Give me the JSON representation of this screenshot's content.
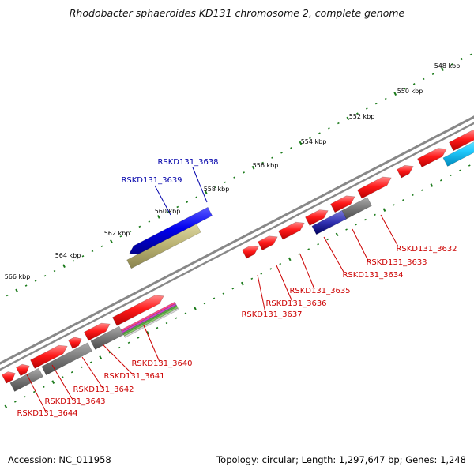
{
  "title": "Rhodobacter sphaeroides KD131 chromosome 2, complete genome",
  "accession_label": "Accession: NC_011958",
  "summary_label": "Topology: circular; Length: 1,297,647 bp; Genes: 1,248",
  "colors": {
    "forward_gene": "#ff1a1a",
    "reverse_gene": "#0000dd",
    "gray_feature": "#777777",
    "olive_feature": "#b8b070",
    "navy_feature": "#2020a0",
    "cyan_feature": "#22ccff",
    "tick_mark": "#1a7a1a",
    "backbone": "#888888",
    "red_label": "#cc0000",
    "blue_label": "#0000aa"
  },
  "ticks": [
    "548 kbp",
    "550 kbp",
    "552 kbp",
    "554 kbp",
    "556 kbp",
    "558 kbp",
    "560 kbp",
    "562 kbp",
    "564 kbp",
    "566 kbp"
  ],
  "gene_labels": [
    {
      "text": "RSKD131_3638",
      "color": "blue"
    },
    {
      "text": "RSKD131_3639",
      "color": "blue"
    },
    {
      "text": "RSKD131_3632",
      "color": "red"
    },
    {
      "text": "RSKD131_3633",
      "color": "red"
    },
    {
      "text": "RSKD131_3634",
      "color": "red"
    },
    {
      "text": "RSKD131_3635",
      "color": "red"
    },
    {
      "text": "RSKD131_3636",
      "color": "red"
    },
    {
      "text": "RSKD131_3637",
      "color": "red"
    },
    {
      "text": "RSKD131_3640",
      "color": "red"
    },
    {
      "text": "RSKD131_3641",
      "color": "red"
    },
    {
      "text": "RSKD131_3642",
      "color": "red"
    },
    {
      "text": "RSKD131_3643",
      "color": "red"
    },
    {
      "text": "RSKD131_3644",
      "color": "red"
    }
  ]
}
